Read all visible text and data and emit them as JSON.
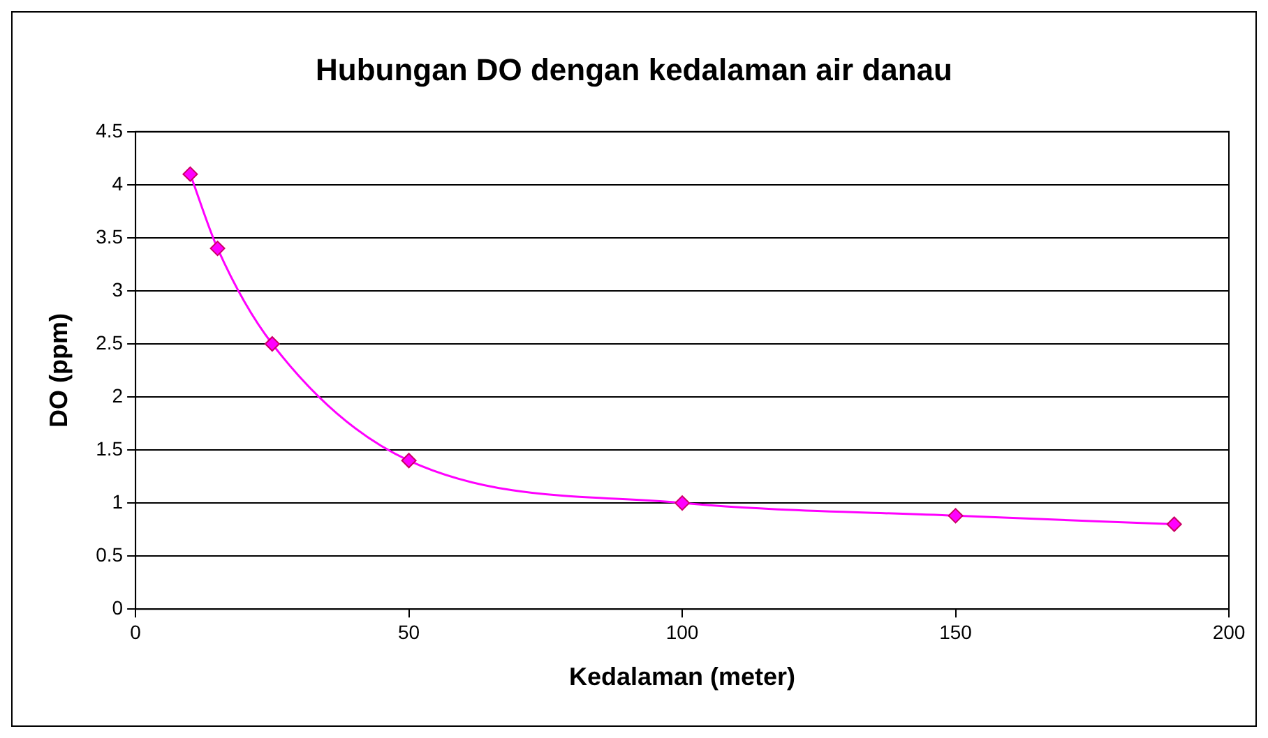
{
  "chart_data": {
    "type": "line",
    "title": "Hubungan DO dengan kedalaman air danau",
    "xlabel": "Kedalaman (meter)",
    "ylabel": "DO (ppm)",
    "x": [
      10,
      15,
      25,
      50,
      100,
      150,
      190
    ],
    "series": [
      {
        "color": "#ff00ff",
        "values": [
          4.1,
          3.4,
          2.5,
          1.4,
          1.0,
          0.88,
          0.8
        ]
      }
    ],
    "xlim": [
      0,
      200
    ],
    "xticks": [
      0,
      50,
      100,
      150,
      200
    ],
    "ylim": [
      0,
      4.5
    ],
    "yticks": [
      0,
      0.5,
      1,
      1.5,
      2,
      2.5,
      3,
      3.5,
      4,
      4.5
    ],
    "grid": "y",
    "legend": false,
    "marker": "diamond",
    "line_style": "solid"
  }
}
